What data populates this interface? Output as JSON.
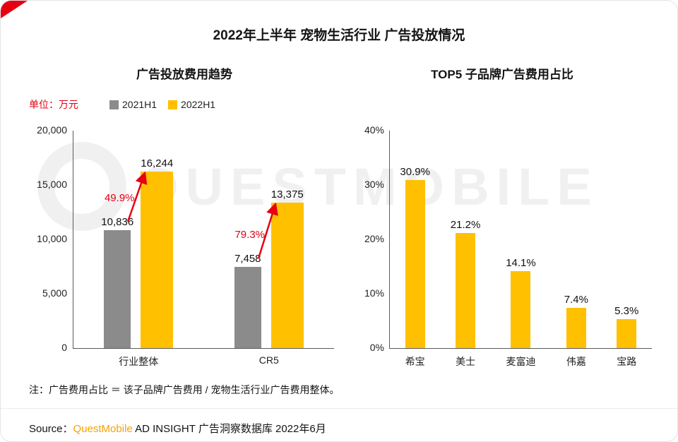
{
  "page": {
    "title": "2022年上半年 宠物生活行业 广告投放情况",
    "note": "注：广告费用占比 ＝ 该子品牌广告费用 / 宠物生活行业广告费用整体。",
    "source_prefix": "Source：",
    "source_brand": "QuestMobile",
    "source_rest": " AD INSIGHT 广告洞察数据库 2022年6月",
    "watermark": "QUESTMOBILE"
  },
  "colors": {
    "gray": "#8B8B8B",
    "yellow": "#FFC000",
    "red": "#E60012",
    "brand_orange": "#F5A300"
  },
  "chart_data": [
    {
      "type": "bar",
      "title": "广告投放费用趋势",
      "unit_label": "单位：万元",
      "categories": [
        "行业整体",
        "CR5"
      ],
      "series": [
        {
          "name": "2021H1",
          "color": "#8B8B8B",
          "values": [
            10836,
            7458
          ],
          "labels": [
            "10,836",
            "7,458"
          ]
        },
        {
          "name": "2022H1",
          "color": "#FFC000",
          "values": [
            16244,
            13375
          ],
          "labels": [
            "16,244",
            "13,375"
          ]
        }
      ],
      "growth": [
        "49.9%",
        "79.3%"
      ],
      "ylim": [
        0,
        20000
      ],
      "yticks": [
        20000,
        15000,
        10000,
        5000,
        0
      ],
      "ytick_labels": [
        "20,000",
        "15,000",
        "10,000",
        "5,000",
        "0"
      ],
      "grid": false,
      "legend_position": "top"
    },
    {
      "type": "bar",
      "title": "TOP5 子品牌广告费用占比",
      "categories": [
        "希宝",
        "美士",
        "麦富迪",
        "伟嘉",
        "宝路"
      ],
      "values": [
        30.9,
        21.2,
        14.1,
        7.4,
        5.3
      ],
      "labels": [
        "30.9%",
        "21.2%",
        "14.1%",
        "7.4%",
        "5.3%"
      ],
      "ylim": [
        0,
        40
      ],
      "yticks": [
        40,
        30,
        20,
        10,
        0
      ],
      "ytick_labels": [
        "40%",
        "30%",
        "20%",
        "10%",
        "0%"
      ],
      "grid": false
    }
  ]
}
